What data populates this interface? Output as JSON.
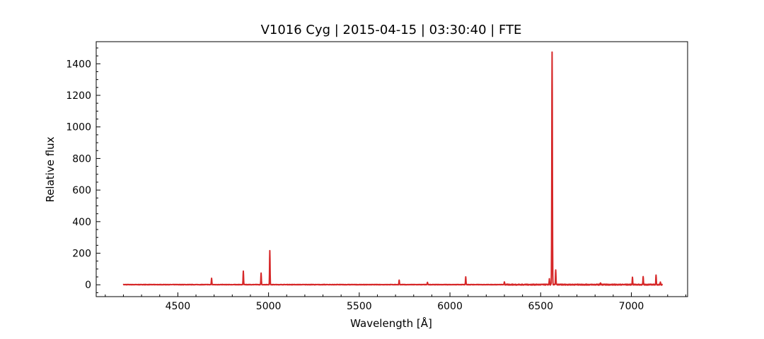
{
  "chart_data": {
    "type": "line",
    "title": "V1016 Cyg | 2015-04-15 | 03:30:40 | FTE",
    "xlabel": "Wavelength [Å]",
    "ylabel": "Relative flux",
    "xlim": [
      4050,
      7310
    ],
    "ylim": [
      -75,
      1540
    ],
    "xticks": [
      4500,
      5000,
      5500,
      6000,
      6500,
      7000
    ],
    "yticks": [
      0,
      200,
      400,
      600,
      800,
      1000,
      1200,
      1400
    ],
    "grid": false,
    "line_color": "#d62728",
    "series": [
      {
        "x_range": [
          4200,
          7170
        ],
        "baseline": 1,
        "peaks": [
          {
            "x": 4686,
            "y": 40
          },
          {
            "x": 4861,
            "y": 85
          },
          {
            "x": 4959,
            "y": 72
          },
          {
            "x": 5007,
            "y": 215
          },
          {
            "x": 5720,
            "y": 28
          },
          {
            "x": 5876,
            "y": 14
          },
          {
            "x": 6087,
            "y": 48
          },
          {
            "x": 6300,
            "y": 18
          },
          {
            "x": 6548,
            "y": 35
          },
          {
            "x": 6563,
            "y": 1470
          },
          {
            "x": 6583,
            "y": 95
          },
          {
            "x": 6830,
            "y": 12
          },
          {
            "x": 7006,
            "y": 45
          },
          {
            "x": 7065,
            "y": 48
          },
          {
            "x": 7136,
            "y": 58
          },
          {
            "x": 7160,
            "y": 15
          }
        ]
      }
    ]
  }
}
